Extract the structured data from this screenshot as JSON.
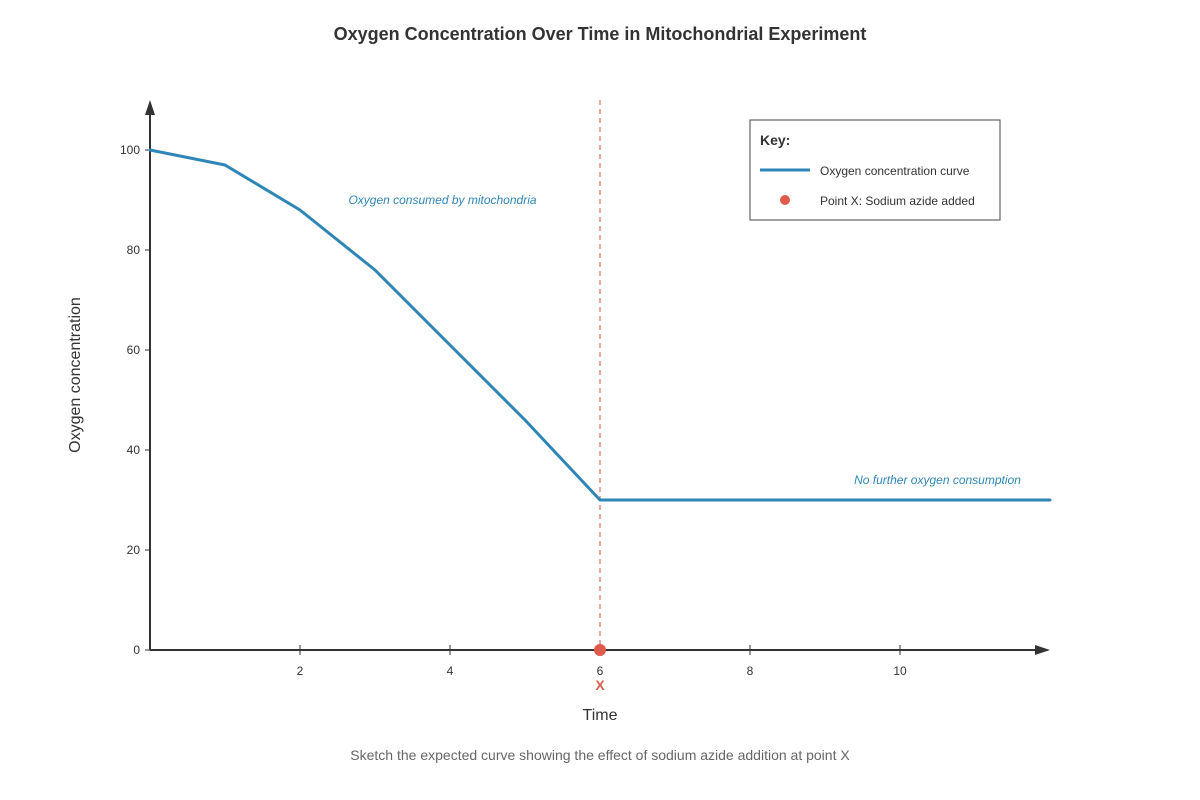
{
  "colors": {
    "series": "#2e86b7",
    "marker": "#e15b4c",
    "axis": "#333333",
    "text": "#333333",
    "annotation": "#2e86b7",
    "caption": "#666666",
    "legend_border": "#444444"
  },
  "chart_data": {
    "type": "line",
    "title": "Oxygen Concentration Over Time in Mitochondrial Experiment",
    "xlabel": "Time",
    "ylabel": "Oxygen concentration",
    "xlim": [
      0,
      12
    ],
    "ylim": [
      0,
      110
    ],
    "grid": false,
    "x_ticks": [
      2,
      4,
      6,
      8,
      10
    ],
    "y_ticks": [
      0,
      20,
      40,
      60,
      80,
      100
    ],
    "series": [
      {
        "name": "Oxygen concentration curve",
        "x": [
          0,
          1,
          2,
          3,
          4,
          5,
          6,
          7,
          8,
          9,
          10,
          11,
          12
        ],
        "y": [
          100,
          97,
          88,
          76,
          61,
          46,
          30,
          30,
          30,
          30,
          30,
          30,
          30
        ]
      }
    ],
    "annotations": [
      {
        "text": "Oxygen consumed by mitochondria",
        "x": 3.9,
        "y": 90
      },
      {
        "text": "No further oxygen consumption",
        "x": 10.5,
        "y": 34
      }
    ],
    "marker": {
      "x": 6,
      "y": 0,
      "label": "X"
    },
    "vertical_reference_x": 6,
    "legend": {
      "title": "Key:",
      "placement": "top-right",
      "items": [
        "Oxygen concentration curve",
        "Point X: Sodium azide added"
      ]
    },
    "caption": "Sketch the expected curve showing the effect of sodium azide addition at point X"
  }
}
